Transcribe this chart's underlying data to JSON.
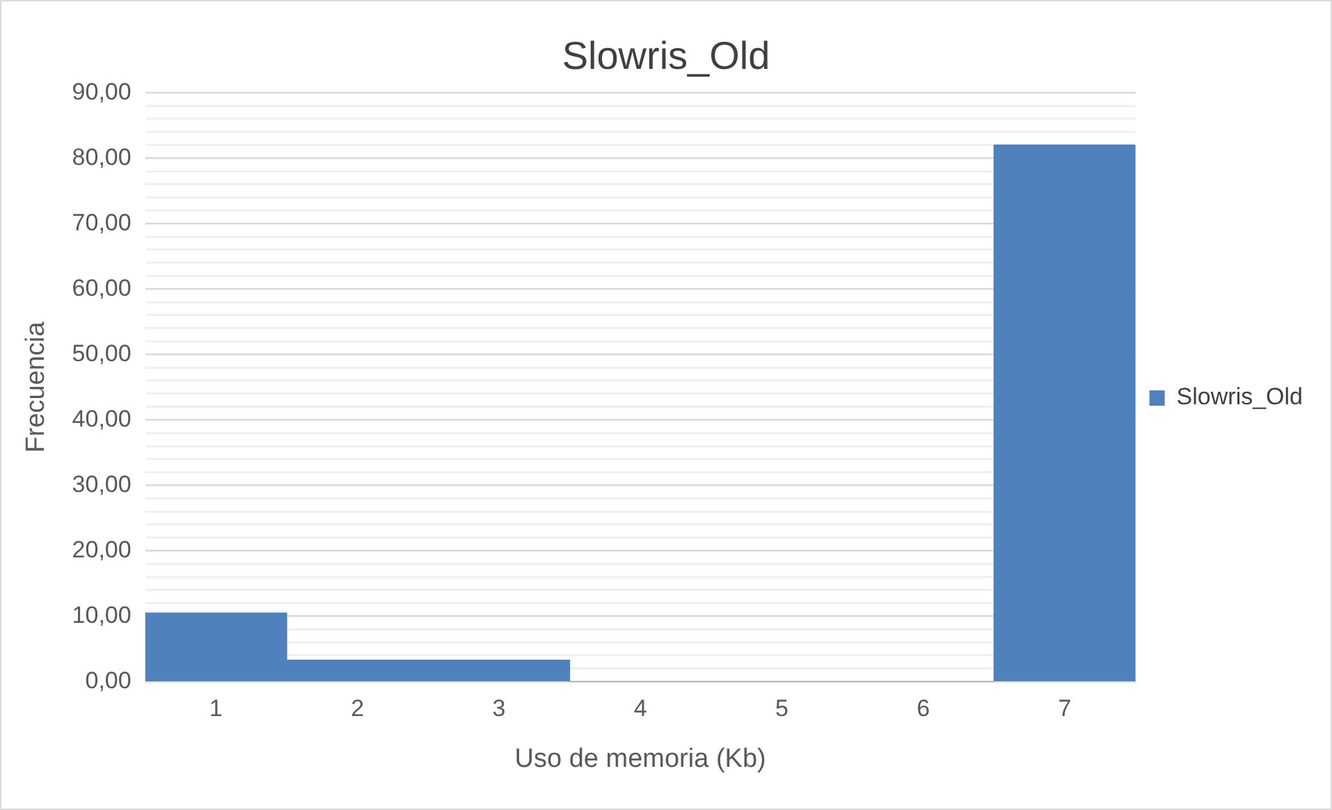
{
  "chart_data": {
    "type": "bar",
    "title": "Slowris_Old",
    "xlabel": "Uso de memoria (Kb)",
    "ylabel": "Frecuencia",
    "categories": [
      "1",
      "2",
      "3",
      "4",
      "5",
      "6",
      "7"
    ],
    "series": [
      {
        "name": "Slowris_Old",
        "color": "#4f81bd",
        "values": [
          10.5,
          3.3,
          3.3,
          0,
          0,
          0,
          82
        ]
      }
    ],
    "ylim": [
      0,
      90
    ],
    "yticks": [
      {
        "value": 0,
        "label": "0,00"
      },
      {
        "value": 2,
        "label": null
      },
      {
        "value": 4,
        "label": null
      },
      {
        "value": 6,
        "label": null
      },
      {
        "value": 8,
        "label": null
      },
      {
        "value": 10,
        "label": "10,00"
      },
      {
        "value": 12,
        "label": null
      },
      {
        "value": 14,
        "label": null
      },
      {
        "value": 16,
        "label": null
      },
      {
        "value": 18,
        "label": null
      },
      {
        "value": 20,
        "label": "20,00"
      },
      {
        "value": 22,
        "label": null
      },
      {
        "value": 24,
        "label": null
      },
      {
        "value": 26,
        "label": null
      },
      {
        "value": 28,
        "label": null
      },
      {
        "value": 30,
        "label": "30,00"
      },
      {
        "value": 32,
        "label": null
      },
      {
        "value": 34,
        "label": null
      },
      {
        "value": 36,
        "label": null
      },
      {
        "value": 38,
        "label": null
      },
      {
        "value": 40,
        "label": "40,00"
      },
      {
        "value": 42,
        "label": null
      },
      {
        "value": 44,
        "label": null
      },
      {
        "value": 46,
        "label": null
      },
      {
        "value": 48,
        "label": null
      },
      {
        "value": 50,
        "label": "50,00"
      },
      {
        "value": 52,
        "label": null
      },
      {
        "value": 54,
        "label": null
      },
      {
        "value": 56,
        "label": null
      },
      {
        "value": 58,
        "label": null
      },
      {
        "value": 60,
        "label": "60,00"
      },
      {
        "value": 62,
        "label": null
      },
      {
        "value": 64,
        "label": null
      },
      {
        "value": 66,
        "label": null
      },
      {
        "value": 68,
        "label": null
      },
      {
        "value": 70,
        "label": "70,00"
      },
      {
        "value": 72,
        "label": null
      },
      {
        "value": 74,
        "label": null
      },
      {
        "value": 76,
        "label": null
      },
      {
        "value": 78,
        "label": null
      },
      {
        "value": 80,
        "label": "80,00"
      },
      {
        "value": 82,
        "label": null
      },
      {
        "value": 84,
        "label": null
      },
      {
        "value": 86,
        "label": null
      },
      {
        "value": 88,
        "label": null
      },
      {
        "value": 90,
        "label": "90,00"
      }
    ],
    "grid": "y",
    "legend": "right"
  }
}
